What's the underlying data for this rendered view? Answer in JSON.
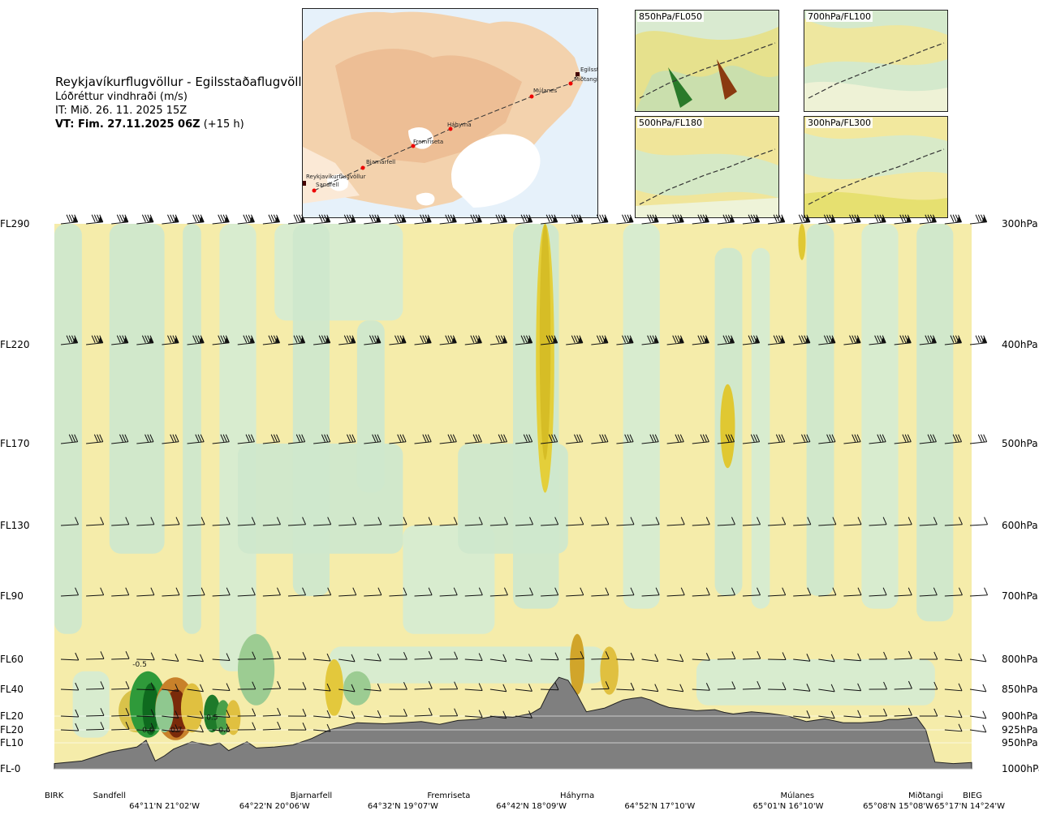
{
  "header": {
    "title": "Reykjavíkurflugvöllur - Egilsstaðaflugvöllur",
    "subtitle": "Lóðréttur vindhraði (m/s)",
    "issue_time": "IT: Mið. 26. 11. 2025 15Z",
    "valid_time": "VT: Fim. 27.11.2025 06Z",
    "valid_offset": "(+15 h)"
  },
  "route_map": {
    "stations": [
      "Reykjavíkurflugvöllur",
      "Sandfell",
      "Bjarnarfell",
      "Fremriseta",
      "Háhyrna",
      "Múlanes",
      "Miðtangi",
      "Egilsstaðir"
    ]
  },
  "level_maps": [
    {
      "label": "850hPa/FL050"
    },
    {
      "label": "700hPa/FL100"
    },
    {
      "label": "500hPa/FL180"
    },
    {
      "label": "300hPa/FL300"
    }
  ],
  "chart_data": {
    "type": "heatmap",
    "variable": "Lóðréttur vindhraði (m/s)",
    "flight_levels": [
      "FL290",
      "FL220",
      "FL170",
      "FL130",
      "FL90",
      "FL60",
      "FL40",
      "FL20",
      "FL20",
      "FL10",
      "FL-0"
    ],
    "pressure_levels": [
      "300hPa",
      "400hPa",
      "500hPa",
      "600hPa",
      "700hPa",
      "800hPa",
      "850hPa",
      "900hPa",
      "925hPa",
      "950hPa",
      "1000hPa"
    ],
    "pressure_values": [
      300,
      400,
      500,
      600,
      700,
      800,
      850,
      900,
      925,
      950,
      1000
    ],
    "x_points": [
      "BIRK",
      "Sandfell",
      "Bjarnarfell",
      "Fremriseta",
      "Háhyrna",
      "Múlanes",
      "Miðtangi",
      "BIEG"
    ],
    "x_point_positions": [
      0.0,
      0.06,
      0.28,
      0.43,
      0.57,
      0.81,
      0.95,
      1.0
    ],
    "coordinates": [
      "64°11'N 21°02'W",
      "64°22'N 20°06'W",
      "64°32'N 19°07'W",
      "64°42'N 18°09'W",
      "64°52'N 17°10'W",
      "65°01'N 16°10'W",
      "65°08'N 15°08'W",
      "65°17'N 14°24'W"
    ],
    "coordinate_positions": [
      0.12,
      0.24,
      0.38,
      0.52,
      0.66,
      0.8,
      0.92,
      1.0
    ],
    "value_labels": [
      {
        "text": "-0.5",
        "x": 0.093,
        "p": 808
      },
      {
        "text": "0.6",
        "x": 0.102,
        "p": 925
      },
      {
        "text": "0.7",
        "x": 0.133,
        "p": 925
      },
      {
        "text": "0.5",
        "x": 0.172,
        "p": 902
      },
      {
        "text": "-0.6",
        "x": 0.184,
        "p": 925
      }
    ],
    "terrain": {
      "x": [
        0,
        0.03,
        0.06,
        0.09,
        0.1,
        0.11,
        0.12,
        0.13,
        0.15,
        0.17,
        0.18,
        0.19,
        0.21,
        0.22,
        0.24,
        0.26,
        0.28,
        0.3,
        0.33,
        0.36,
        0.38,
        0.4,
        0.42,
        0.44,
        0.46,
        0.48,
        0.5,
        0.52,
        0.53,
        0.54,
        0.55,
        0.56,
        0.57,
        0.58,
        0.6,
        0.62,
        0.63,
        0.64,
        0.65,
        0.66,
        0.67,
        0.7,
        0.72,
        0.73,
        0.74,
        0.76,
        0.78,
        0.8,
        0.82,
        0.84,
        0.86,
        0.88,
        0.9,
        0.91,
        0.92,
        0.94,
        0.95,
        0.96,
        0.98,
        1.0
      ],
      "p": [
        990,
        985,
        968,
        958,
        945,
        985,
        975,
        962,
        948,
        955,
        950,
        965,
        948,
        960,
        958,
        954,
        942,
        925,
        912,
        914,
        912,
        910,
        915,
        908,
        906,
        900,
        902,
        895,
        885,
        850,
        830,
        835,
        860,
        892,
        885,
        870,
        867,
        865,
        870,
        878,
        884,
        890,
        888,
        893,
        896,
        892,
        895,
        900,
        910,
        905,
        912,
        912,
        910,
        906,
        906,
        902,
        925,
        987,
        990,
        988
      ]
    },
    "wind_levels_hpa": [
      300,
      400,
      500,
      600,
      700,
      800,
      850,
      900,
      925
    ],
    "legend": "none",
    "grid": false
  }
}
